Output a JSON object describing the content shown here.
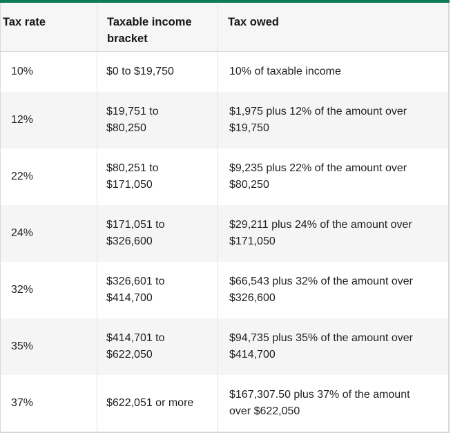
{
  "theme": {
    "accent_green": "#0c7c54",
    "header_background": "#f6f6f6",
    "stripe_gray": "#f5f5f6",
    "outer_border_gray": "#d9d9d9",
    "column_divider_gray": "#e4e4e4",
    "text_color": "#1f1f1f"
  },
  "table": {
    "columns": {
      "tax_rate": "Tax rate",
      "income_bracket": "Taxable income bracket",
      "tax_owed": "Tax owed"
    },
    "rows": [
      {
        "rate": "10%",
        "bracket": "$0 to $19,750",
        "owed": "10% of taxable income"
      },
      {
        "rate": "12%",
        "bracket": "$19,751 to $80,250",
        "owed": "$1,975 plus 12% of the amount over $19,750"
      },
      {
        "rate": "22%",
        "bracket": "$80,251 to $171,050",
        "owed": "$9,235 plus 22% of the amount over $80,250"
      },
      {
        "rate": "24%",
        "bracket": "$171,051 to $326,600",
        "owed": "$29,211 plus 24% of the amount over $171,050"
      },
      {
        "rate": "32%",
        "bracket": "$326,601 to $414,700",
        "owed": "$66,543 plus 32% of the amount over $326,600"
      },
      {
        "rate": "35%",
        "bracket": "$414,701 to $622,050",
        "owed": "$94,735 plus 35% of the amount over $414,700"
      },
      {
        "rate": "37%",
        "bracket": "$622,051 or more",
        "owed": "$167,307.50 plus 37% of the amount over $622,050"
      }
    ]
  }
}
